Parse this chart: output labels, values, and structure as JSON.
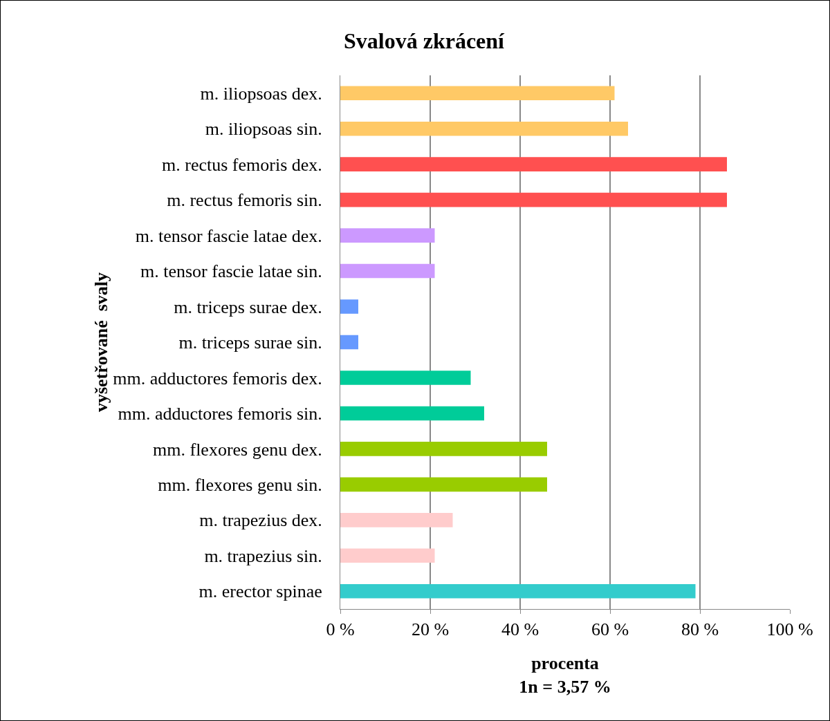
{
  "chart_data": {
    "type": "bar",
    "orientation": "horizontal",
    "title": "Svalová zkrácení",
    "xlabel": "procenta\n1n = 3,57 %",
    "ylabel": "vyšetřované  svaly",
    "categories": [
      "m. iliopsoas dex.",
      "m. iliopsoas sin.",
      "m. rectus femoris dex.",
      "m. rectus femoris sin.",
      "m. tensor fascie latae dex.",
      "m. tensor fascie latae sin.",
      "m. triceps surae dex.",
      "m. triceps surae sin.",
      "mm. adductores femoris dex.",
      "mm. adductores femoris sin.",
      "mm. flexores genu dex.",
      "mm. flexores genu sin.",
      "m. trapezius dex.",
      "m. trapezius sin.",
      "m. erector spinae"
    ],
    "values": [
      61,
      64,
      86,
      86,
      21,
      21,
      4,
      4,
      29,
      32,
      46,
      46,
      25,
      21,
      79
    ],
    "colors": [
      "#ffc966",
      "#ffc966",
      "#ff5050",
      "#ff5050",
      "#cc99ff",
      "#cc99ff",
      "#6699ff",
      "#6699ff",
      "#00cc99",
      "#00cc99",
      "#99cc00",
      "#99cc00",
      "#ffcccc",
      "#ffcccc",
      "#33cccc"
    ],
    "xlim": [
      0,
      100
    ],
    "xticks": [
      {
        "value": 0,
        "label": "0 %"
      },
      {
        "value": 20,
        "label": "20 %"
      },
      {
        "value": 40,
        "label": "40 %"
      },
      {
        "value": 60,
        "label": "60 %"
      },
      {
        "value": 80,
        "label": "80 %"
      },
      {
        "value": 100,
        "label": "100 %"
      }
    ],
    "grid": "x",
    "legend": false
  }
}
